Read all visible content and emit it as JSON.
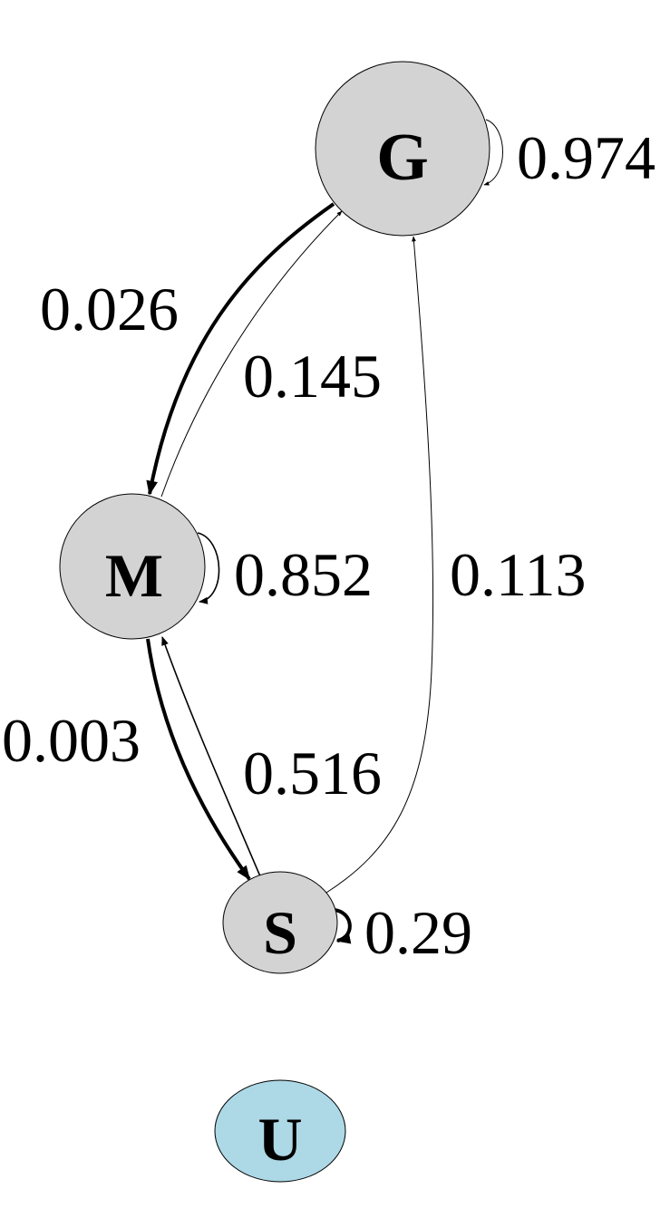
{
  "colors": {
    "node_fill": "#d3d3d3",
    "node_fill_unconnected": "#add8e6",
    "stroke": "#000000"
  },
  "nodes": {
    "G": {
      "label": "G"
    },
    "M": {
      "label": "M"
    },
    "S": {
      "label": "S"
    },
    "U": {
      "label": "U"
    }
  },
  "edges": {
    "G_to_G": {
      "from": "G",
      "to": "G",
      "label": "0.974"
    },
    "G_to_M": {
      "from": "G",
      "to": "M",
      "label": "0.026"
    },
    "M_to_G": {
      "from": "M",
      "to": "G",
      "label": "0.145"
    },
    "M_to_M": {
      "from": "M",
      "to": "M",
      "label": "0.852"
    },
    "S_to_G": {
      "from": "S",
      "to": "G",
      "label": "0.113"
    },
    "M_to_S": {
      "from": "M",
      "to": "S",
      "label": "0.003"
    },
    "S_to_M": {
      "from": "S",
      "to": "M",
      "label": "0.516"
    },
    "S_to_S": {
      "from": "S",
      "to": "S",
      "label": "0.29"
    }
  }
}
